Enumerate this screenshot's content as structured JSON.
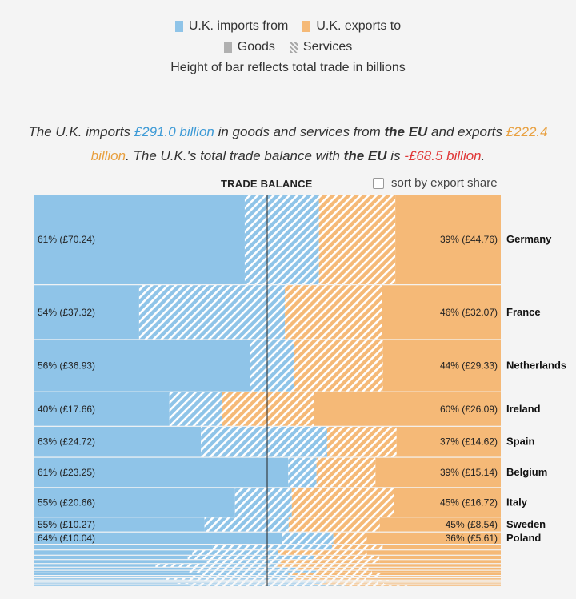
{
  "legend": {
    "imports_label": "U.K. imports from",
    "exports_label": "U.K. exports to",
    "goods_label": "Goods",
    "services_label": "Services",
    "note": "Height of bar reflects total trade in billions"
  },
  "summary": {
    "p1": "The U.K. imports ",
    "imports_value": "£291.0 billion",
    "p2": " in goods and services from ",
    "partner1": "the EU",
    "p3": " and exports ",
    "exports_value": "£222.4 billion",
    "p4": ". The U.K.'s total trade balance with ",
    "partner2": "the EU",
    "p5": " is ",
    "balance_value": "-£68.5 billion",
    "p6": "."
  },
  "balance_title": "TRADE BALANCE",
  "sort_label": "sort by export share",
  "colors": {
    "imports": "#8fc4e8",
    "exports": "#f5b977",
    "imports_text": "#3d9ad6",
    "exports_text": "#e8a040",
    "negative": "#e03838"
  },
  "chart_data": {
    "type": "bar",
    "orientation": "horizontal-stacked-100",
    "rows": [
      {
        "country": "Germany",
        "import_label": "61% (£70.24)",
        "export_label": "39% (£44.76)",
        "imports": 70.24,
        "exports": 44.76,
        "imp_services_share": 0.26,
        "exp_services_share": 0.42
      },
      {
        "country": "France",
        "import_label": "54% (£37.32)",
        "export_label": "46% (£32.07)",
        "imports": 37.32,
        "exports": 32.07,
        "imp_services_share": 0.58,
        "exp_services_share": 0.45
      },
      {
        "country": "Netherlands",
        "import_label": "56% (£36.93)",
        "export_label": "44% (£29.33)",
        "imports": 36.93,
        "exports": 29.33,
        "imp_services_share": 0.17,
        "exp_services_share": 0.43
      },
      {
        "country": "Ireland",
        "import_label": "40% (£17.66)",
        "export_label": "60% (£26.09)",
        "imports": 17.66,
        "exports": 26.09,
        "imp_services_share": 0.28,
        "exp_services_share": 0.33
      },
      {
        "country": "Spain",
        "import_label": "63% (£24.72)",
        "export_label": "37% (£14.62)",
        "imports": 24.72,
        "exports": 14.62,
        "imp_services_share": 0.43,
        "exp_services_share": 0.4
      },
      {
        "country": "Belgium",
        "import_label": "61% (£23.25)",
        "export_label": "39% (£15.14)",
        "imports": 23.25,
        "exports": 15.14,
        "imp_services_share": 0.1,
        "exp_services_share": 0.32
      },
      {
        "country": "Italy",
        "import_label": "55% (£20.66)",
        "export_label": "45% (£16.72)",
        "imports": 20.66,
        "exports": 16.72,
        "imp_services_share": 0.22,
        "exp_services_share": 0.49
      },
      {
        "country": "Sweden",
        "import_label": "55% (£10.27)",
        "export_label": "45% (£8.54)",
        "imports": 10.27,
        "exports": 8.54,
        "imp_services_share": 0.33,
        "exp_services_share": 0.43
      },
      {
        "country": "Poland",
        "import_label": "64% (£10.04)",
        "export_label": "36% (£5.61)",
        "imports": 10.04,
        "exports": 5.61,
        "imp_services_share": 0.17,
        "exp_services_share": 0.2
      }
    ],
    "minor_rows": [
      {
        "imports": 4.6,
        "exports": 2.6,
        "imp_services_share": 0.4,
        "exp_services_share": 0.3
      },
      {
        "imports": 3.5,
        "exports": 3.2,
        "imp_services_share": 0.35,
        "exp_services_share": 0.4
      },
      {
        "imports": 3.3,
        "exports": 2.2,
        "imp_services_share": 0.45,
        "exp_services_share": 0.35
      },
      {
        "imports": 2.7,
        "exports": 2.4,
        "imp_services_share": 0.3,
        "exp_services_share": 0.45
      },
      {
        "imports": 2.4,
        "exports": 2.2,
        "imp_services_share": 0.5,
        "exp_services_share": 0.4
      },
      {
        "imports": 2.2,
        "exports": 1.7,
        "imp_services_share": 0.4,
        "exp_services_share": 0.35
      },
      {
        "imports": 2.0,
        "exports": 1.3,
        "imp_services_share": 0.45,
        "exp_services_share": 0.3
      },
      {
        "imports": 1.8,
        "exports": 1.5,
        "imp_services_share": 0.35,
        "exp_services_share": 0.45
      },
      {
        "imports": 1.7,
        "exports": 1.3,
        "imp_services_share": 0.4,
        "exp_services_share": 0.4
      },
      {
        "imports": 1.5,
        "exports": 1.2,
        "imp_services_share": 0.5,
        "exp_services_share": 0.35
      },
      {
        "imports": 1.2,
        "exports": 0.8,
        "imp_services_share": 0.45,
        "exp_services_share": 0.4
      },
      {
        "imports": 1.0,
        "exports": 0.6,
        "imp_services_share": 0.4,
        "exp_services_share": 0.3
      },
      {
        "imports": 0.8,
        "exports": 0.5,
        "imp_services_share": 0.5,
        "exp_services_share": 0.35
      },
      {
        "imports": 0.6,
        "exports": 0.4,
        "imp_services_share": 0.45,
        "exp_services_share": 0.4
      },
      {
        "imports": 0.5,
        "exports": 0.3,
        "imp_services_share": 0.4,
        "exp_services_share": 0.3
      },
      {
        "imports": 0.4,
        "exports": 0.2,
        "imp_services_share": 0.5,
        "exp_services_share": 0.4
      }
    ]
  }
}
